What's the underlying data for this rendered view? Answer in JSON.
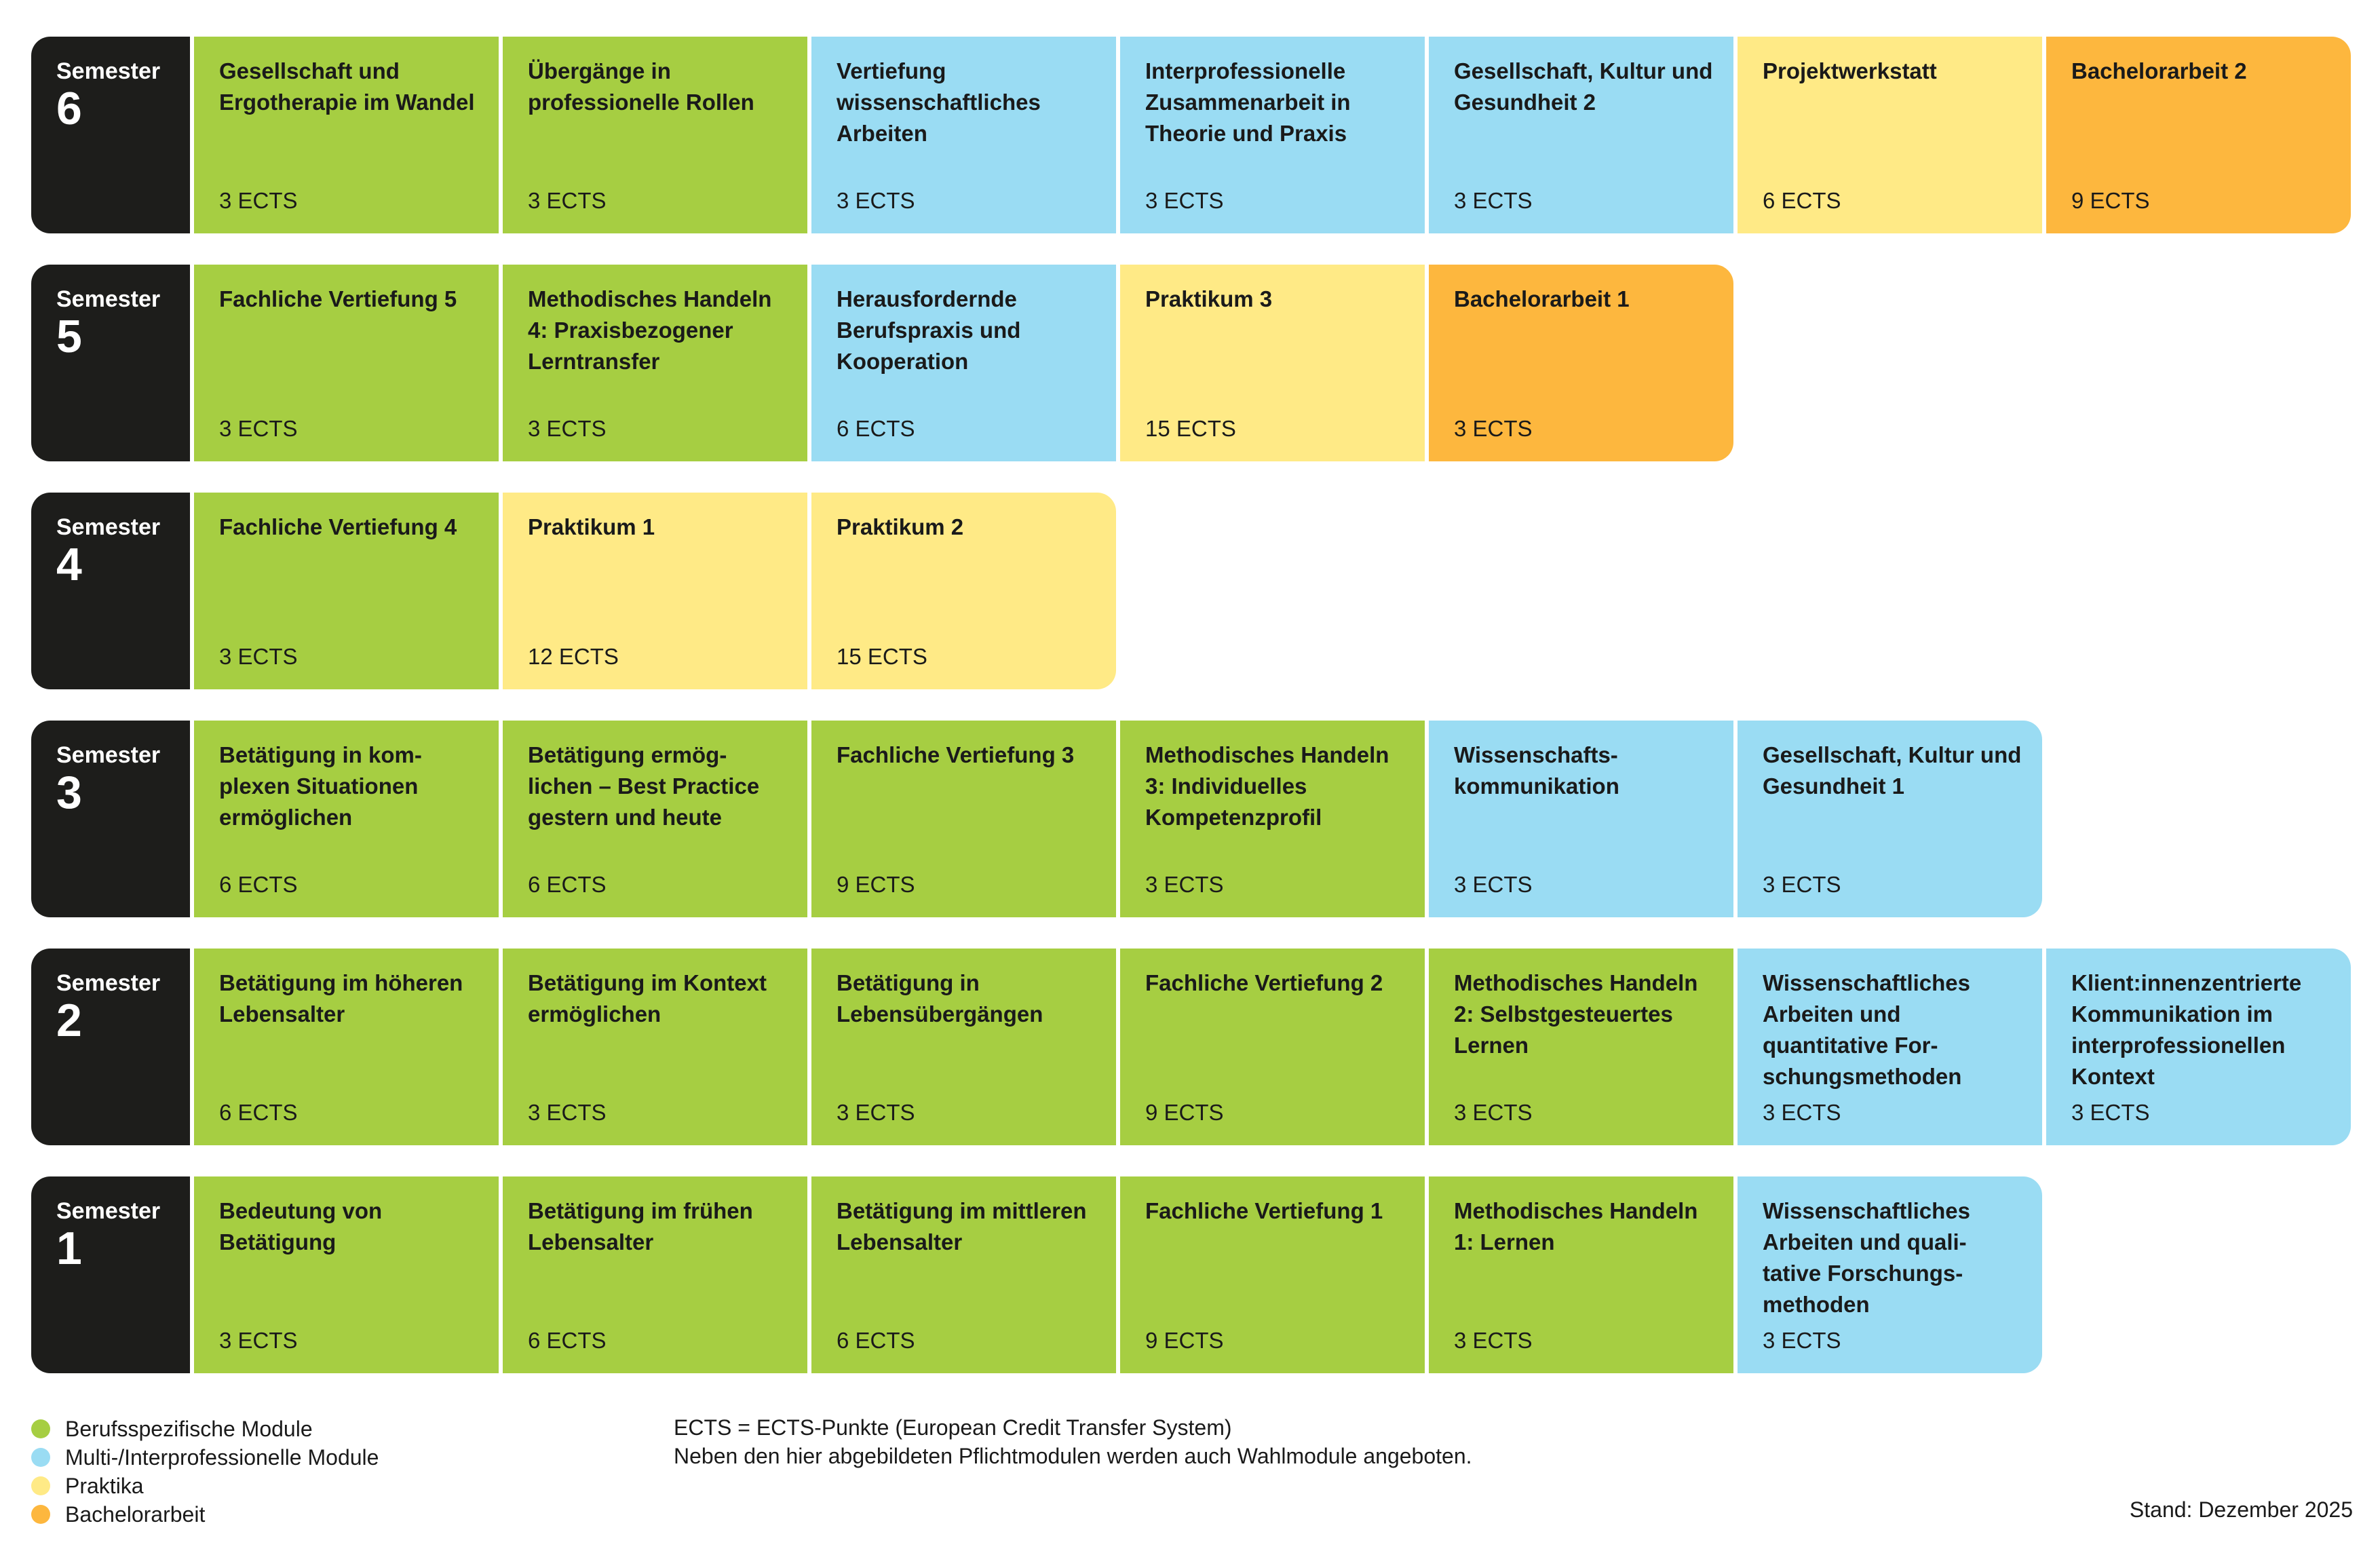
{
  "colors": {
    "berufsspezifisch": "#a6ce42",
    "multi": "#9adcf3",
    "praktika": "#ffea86",
    "bachelor": "#fdb73e",
    "semester": "#1d1d1b"
  },
  "semesters": [
    {
      "label": "Semester",
      "number": "6",
      "modules": [
        {
          "title": "Gesellschaft und Ergotherapie im Wandel",
          "ects": "3 ECTS",
          "category": "berufsspezifisch"
        },
        {
          "title": "Übergänge in professionelle Rollen",
          "ects": "3 ECTS",
          "category": "berufsspezifisch"
        },
        {
          "title": "Vertiefung wissenschaftliches Arbeiten",
          "ects": "3 ECTS",
          "category": "multi"
        },
        {
          "title": "Interprofessionelle Zusammenarbeit in Theorie und Praxis",
          "ects": "3 ECTS",
          "category": "multi"
        },
        {
          "title": "Gesellschaft, Kultur und Gesundheit 2",
          "ects": "3 ECTS",
          "category": "multi"
        },
        {
          "title": "Projektwerkstatt",
          "ects": "6 ECTS",
          "category": "praktika"
        },
        {
          "title": "Bachelorarbeit 2",
          "ects": "9 ECTS",
          "category": "bachelor"
        }
      ]
    },
    {
      "label": "Semester",
      "number": "5",
      "modules": [
        {
          "title": "Fachliche Vertiefung 5",
          "ects": "3 ECTS",
          "category": "berufsspezifisch"
        },
        {
          "title": "Methodisches Handeln 4: Praxisbezogener Lerntransfer",
          "ects": "3 ECTS",
          "category": "berufsspezifisch"
        },
        {
          "title": "Herausfordernde Berufspraxis und Kooperation",
          "ects": "6 ECTS",
          "category": "multi"
        },
        {
          "title": "Praktikum 3",
          "ects": "15 ECTS",
          "category": "praktika"
        },
        {
          "title": "Bachelorarbeit 1",
          "ects": "3 ECTS",
          "category": "bachelor"
        }
      ]
    },
    {
      "label": "Semester",
      "number": "4",
      "modules": [
        {
          "title": "Fachliche Vertiefung 4",
          "ects": "3 ECTS",
          "category": "berufsspezifisch"
        },
        {
          "title": "Praktikum 1",
          "ects": "12 ECTS",
          "category": "praktika"
        },
        {
          "title": "Praktikum 2",
          "ects": "15 ECTS",
          "category": "praktika"
        }
      ]
    },
    {
      "label": "Semester",
      "number": "3",
      "modules": [
        {
          "title": "Betätigung in kom-plexen Situationen ermöglichen",
          "ects": "6 ECTS",
          "category": "berufsspezifisch"
        },
        {
          "title": "Betätigung ermög-lichen – Best Practice gestern und heute",
          "ects": "6 ECTS",
          "category": "berufsspezifisch"
        },
        {
          "title": "Fachliche Vertiefung 3",
          "ects": "9 ECTS",
          "category": "berufsspezifisch"
        },
        {
          "title": "Methodisches Handeln 3: Individuelles Kompetenzprofil",
          "ects": "3 ECTS",
          "category": "berufsspezifisch"
        },
        {
          "title": "Wissenschafts-kommunikation",
          "ects": "3 ECTS",
          "category": "multi"
        },
        {
          "title": "Gesellschaft, Kultur und Gesundheit 1",
          "ects": "3 ECTS",
          "category": "multi"
        }
      ]
    },
    {
      "label": "Semester",
      "number": "2",
      "modules": [
        {
          "title": "Betätigung im höheren Lebensalter",
          "ects": "6 ECTS",
          "category": "berufsspezifisch"
        },
        {
          "title": "Betätigung im Kontext ermöglichen",
          "ects": "3 ECTS",
          "category": "berufsspezifisch"
        },
        {
          "title": "Betätigung in Lebensübergängen",
          "ects": "3 ECTS",
          "category": "berufsspezifisch"
        },
        {
          "title": "Fachliche Vertiefung 2",
          "ects": "9 ECTS",
          "category": "berufsspezifisch"
        },
        {
          "title": "Methodisches Handeln 2: Selbstgesteuertes Lernen",
          "ects": "3 ECTS",
          "category": "berufsspezifisch"
        },
        {
          "title": "Wissenschaftliches Arbeiten und quantitative For-schungsmethoden",
          "ects": "3 ECTS",
          "category": "multi"
        },
        {
          "title": "Klient:innenzentrierte Kommunikation im interprofessionellen Kontext",
          "ects": "3 ECTS",
          "category": "multi"
        }
      ]
    },
    {
      "label": "Semester",
      "number": "1",
      "modules": [
        {
          "title": "Bedeutung von Betätigung",
          "ects": "3 ECTS",
          "category": "berufsspezifisch"
        },
        {
          "title": "Betätigung im frühen Lebensalter",
          "ects": "6 ECTS",
          "category": "berufsspezifisch"
        },
        {
          "title": "Betätigung im mittleren Lebensalter",
          "ects": "6 ECTS",
          "category": "berufsspezifisch"
        },
        {
          "title": "Fachliche Vertiefung 1",
          "ects": "9 ECTS",
          "category": "berufsspezifisch"
        },
        {
          "title": "Methodisches Handeln 1: Lernen",
          "ects": "3 ECTS",
          "category": "berufsspezifisch"
        },
        {
          "title": "Wissenschaftliches Arbeiten und quali-tative Forschungs-methoden",
          "ects": "3 ECTS",
          "category": "multi"
        }
      ]
    }
  ],
  "legend": [
    {
      "label": "Berufsspezifische Module",
      "category": "berufsspezifisch"
    },
    {
      "label": "Multi-/Interprofessionelle Module",
      "category": "multi"
    },
    {
      "label": "Praktika",
      "category": "praktika"
    },
    {
      "label": "Bachelorarbeit",
      "category": "bachelor"
    }
  ],
  "notes": {
    "ects_definition": "ECTS = ECTS-Punkte (European Credit Transfer System)",
    "wahlmodule": "Neben den hier abgebildeten Pflichtmodulen werden auch Wahlmodule angeboten."
  },
  "stand": "Stand: Dezember 2025"
}
